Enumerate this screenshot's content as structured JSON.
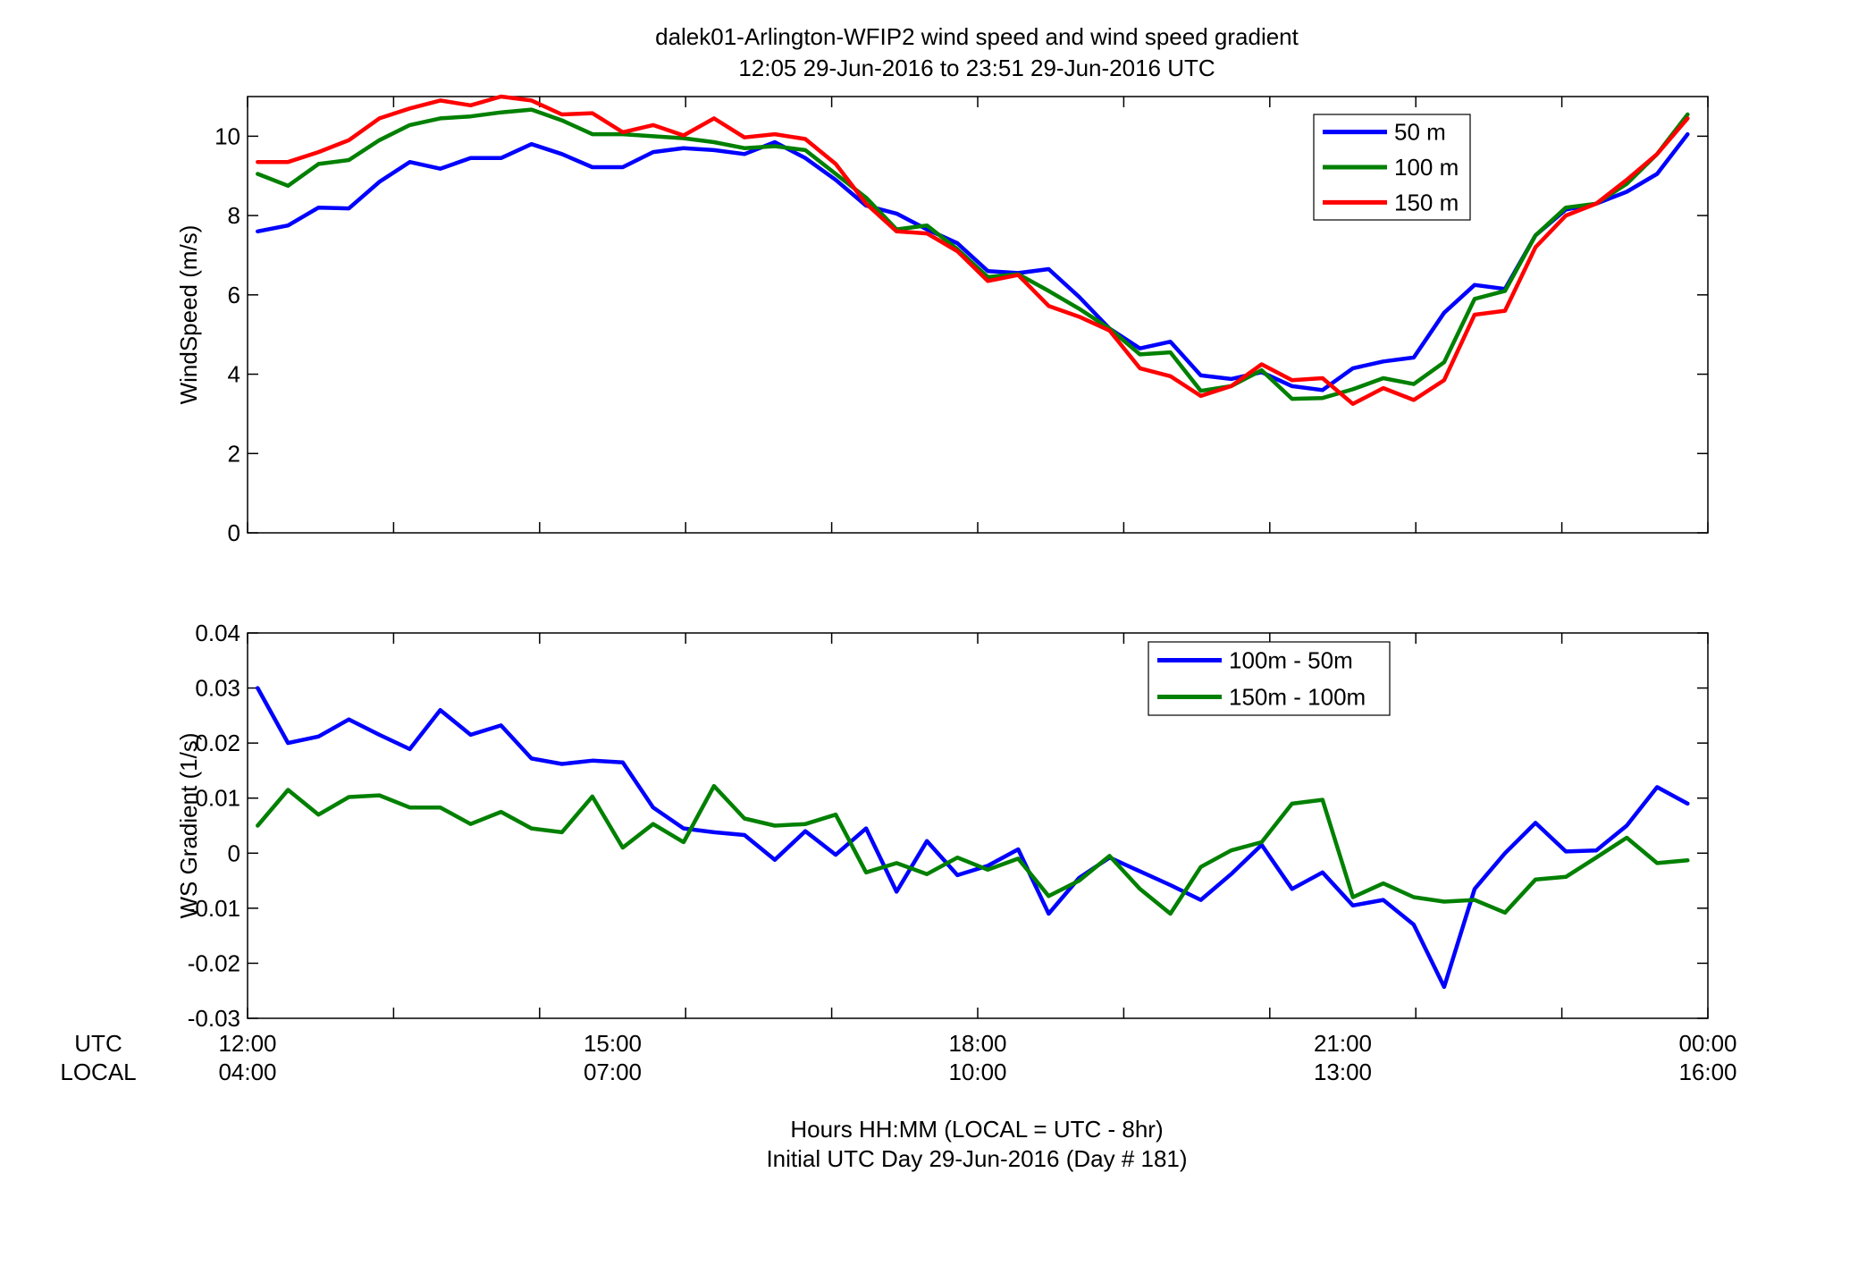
{
  "figure": {
    "title_line1": "dalek01-Arlington-WFIP2  wind speed and wind speed gradient",
    "title_line2": "12:05 29-Jun-2016 to 23:51 29-Jun-2016  UTC",
    "row_label_utc": "UTC",
    "row_label_local": "LOCAL",
    "xlabel_line1": "Hours HH:MM  (LOCAL = UTC - 8hr)",
    "xlabel_line2": "Initial UTC Day 29-Jun-2016 (Day # 181)"
  },
  "chart_data": [
    {
      "type": "line",
      "title": "",
      "xlabel": "",
      "ylabel": "WindSpeed (m/s)",
      "xlim_hours_utc": [
        12.0,
        24.0
      ],
      "ylim": [
        0,
        11
      ],
      "yticks": [
        0,
        2,
        4,
        6,
        8,
        10
      ],
      "ytick_labels": [
        "0",
        "2",
        "4",
        "6",
        "8",
        "10"
      ],
      "x_hours_utc": [
        12.083,
        12.333,
        12.583,
        12.833,
        13.083,
        13.333,
        13.583,
        13.833,
        14.083,
        14.333,
        14.583,
        14.833,
        15.083,
        15.333,
        15.583,
        15.833,
        16.083,
        16.333,
        16.583,
        16.833,
        17.083,
        17.333,
        17.583,
        17.833,
        18.083,
        18.333,
        18.583,
        18.833,
        19.083,
        19.333,
        19.583,
        19.833,
        20.083,
        20.333,
        20.583,
        20.833,
        21.083,
        21.333,
        21.583,
        21.833,
        22.083,
        22.333,
        22.583,
        22.833,
        23.083,
        23.333,
        23.583,
        23.833
      ],
      "series": [
        {
          "name": "50 m",
          "color": "#0000ff",
          "values": [
            7.6,
            7.75,
            8.2,
            8.18,
            8.85,
            9.35,
            9.18,
            9.45,
            9.45,
            9.8,
            9.55,
            9.22,
            9.22,
            9.6,
            9.7,
            9.65,
            9.55,
            9.85,
            9.45,
            8.9,
            8.25,
            8.05,
            7.65,
            7.3,
            6.6,
            6.55,
            6.65,
            5.95,
            5.15,
            4.65,
            4.82,
            3.97,
            3.88,
            4.05,
            3.7,
            3.6,
            4.15,
            4.32,
            4.42,
            5.55,
            6.25,
            6.15,
            7.5,
            8.15,
            8.3,
            8.6,
            9.05,
            10.05
          ]
        },
        {
          "name": "100 m",
          "color": "#008000",
          "values": [
            9.05,
            8.75,
            9.3,
            9.4,
            9.9,
            10.28,
            10.45,
            10.5,
            10.6,
            10.67,
            10.4,
            10.05,
            10.05,
            10.0,
            9.95,
            9.85,
            9.7,
            9.75,
            9.65,
            9.05,
            8.45,
            7.65,
            7.75,
            7.15,
            6.45,
            6.52,
            6.1,
            5.65,
            5.15,
            4.5,
            4.55,
            3.58,
            3.7,
            4.1,
            3.38,
            3.4,
            3.62,
            3.9,
            3.75,
            4.3,
            5.9,
            6.1,
            7.5,
            8.2,
            8.3,
            8.8,
            9.55,
            10.55
          ]
        },
        {
          "name": "150 m",
          "color": "#ff0000",
          "values": [
            9.35,
            9.35,
            9.6,
            9.9,
            10.45,
            10.7,
            10.9,
            10.78,
            11.0,
            10.9,
            10.55,
            10.58,
            10.1,
            10.28,
            10.02,
            10.45,
            9.97,
            10.05,
            9.93,
            9.3,
            8.3,
            7.6,
            7.55,
            7.1,
            6.35,
            6.5,
            5.72,
            5.45,
            5.1,
            4.15,
            3.95,
            3.45,
            3.7,
            4.25,
            3.85,
            3.9,
            3.25,
            3.65,
            3.35,
            3.85,
            5.5,
            5.6,
            7.2,
            8.0,
            8.3,
            8.9,
            9.55,
            10.45
          ]
        }
      ],
      "legend_location": "top-right"
    },
    {
      "type": "line",
      "title": "",
      "xlabel": "",
      "ylabel": "WS Gradient (1/s)",
      "xlim_hours_utc": [
        12.0,
        24.0
      ],
      "ylim": [
        -0.03,
        0.04
      ],
      "yticks": [
        -0.03,
        -0.02,
        -0.01,
        0,
        0.01,
        0.02,
        0.03,
        0.04
      ],
      "ytick_labels": [
        "-0.03",
        "-0.02",
        "-0.01",
        "0",
        "0.01",
        "0.02",
        "0.03",
        "0.04"
      ],
      "x_hours_utc": [
        12.083,
        12.333,
        12.583,
        12.833,
        13.083,
        13.333,
        13.583,
        13.833,
        14.083,
        14.333,
        14.583,
        14.833,
        15.083,
        15.333,
        15.583,
        15.833,
        16.083,
        16.333,
        16.583,
        16.833,
        17.083,
        17.333,
        17.583,
        17.833,
        18.083,
        18.333,
        18.583,
        18.833,
        19.083,
        19.333,
        19.583,
        19.833,
        20.083,
        20.333,
        20.583,
        20.833,
        21.083,
        21.333,
        21.583,
        21.833,
        22.083,
        22.333,
        22.583,
        22.833,
        23.083,
        23.333,
        23.583,
        23.833
      ],
      "series": [
        {
          "name": "100m - 50m",
          "color": "#0000ff",
          "values": [
            0.03,
            0.02,
            0.0212,
            0.0243,
            0.0215,
            0.0189,
            0.026,
            0.0215,
            0.0232,
            0.0172,
            0.0162,
            0.0168,
            0.0165,
            0.0083,
            0.0045,
            0.0038,
            0.0033,
            -0.0012,
            0.004,
            -0.0003,
            0.0045,
            -0.007,
            0.0022,
            -0.004,
            -0.0023,
            0.0007,
            -0.011,
            -0.0045,
            -0.0008,
            -0.0033,
            -0.0058,
            -0.0085,
            -0.0038,
            0.0015,
            -0.0065,
            -0.0035,
            -0.0095,
            -0.0085,
            -0.013,
            -0.0243,
            -0.0065,
            0.0,
            0.0055,
            0.0003,
            0.0005,
            0.005,
            0.012,
            0.009
          ]
        },
        {
          "name": "150m - 100m",
          "color": "#008000",
          "values": [
            0.005,
            0.0115,
            0.007,
            0.0102,
            0.0105,
            0.0083,
            0.0083,
            0.0053,
            0.0075,
            0.0045,
            0.0038,
            0.0103,
            0.001,
            0.0053,
            0.002,
            0.0122,
            0.0063,
            0.005,
            0.0053,
            0.007,
            -0.0035,
            -0.0018,
            -0.0038,
            -0.0008,
            -0.003,
            -0.001,
            -0.0078,
            -0.005,
            -0.0005,
            -0.0065,
            -0.011,
            -0.0025,
            0.0005,
            0.002,
            0.009,
            0.0097,
            -0.008,
            -0.0055,
            -0.008,
            -0.0088,
            -0.0085,
            -0.0108,
            -0.0048,
            -0.0043,
            -0.0008,
            0.0028,
            -0.0018,
            -0.0013
          ]
        }
      ],
      "legend_location": "top-right"
    }
  ],
  "x_ticks": [
    {
      "hour": 12,
      "utc": "12:00",
      "local": "04:00"
    },
    {
      "hour": 15,
      "utc": "15:00",
      "local": "07:00"
    },
    {
      "hour": 18,
      "utc": "18:00",
      "local": "10:00"
    },
    {
      "hour": 21,
      "utc": "21:00",
      "local": "13:00"
    },
    {
      "hour": 24,
      "utc": "00:00",
      "local": "16:00"
    }
  ],
  "x_minor_ticks_hours": [
    12,
    13.2,
    14.4,
    15.6,
    16.8,
    18,
    19.2,
    20.4,
    21.6,
    22.8,
    24
  ]
}
